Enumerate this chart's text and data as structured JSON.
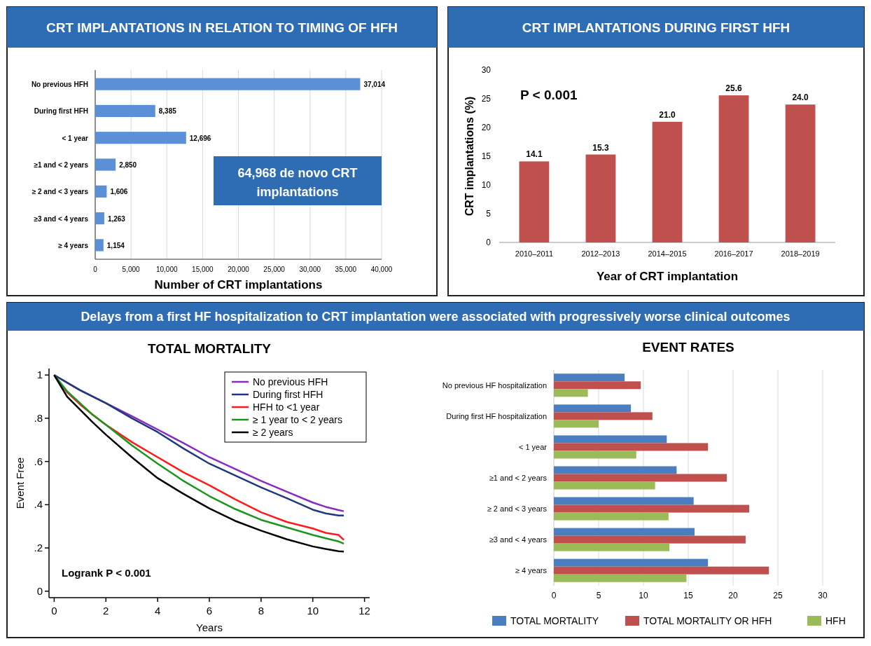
{
  "chart_data": [
    {
      "type": "bar",
      "orientation": "horizontal",
      "title": "CRT IMPLANTATIONS IN RELATION TO TIMING OF HFH",
      "xlabel": "Number of CRT implantations",
      "categories": [
        "No previous HFH",
        "During first HFH",
        "< 1 year",
        "≥1 and < 2 years",
        "≥ 2 and < 3 years",
        "≥3 and < 4 years",
        "≥ 4 years"
      ],
      "values": [
        37014,
        8385,
        12696,
        2850,
        1606,
        1263,
        1154
      ],
      "value_labels": [
        "37,014",
        "8,385",
        "12,696",
        "2,850",
        "1,606",
        "1,263",
        "1,154"
      ],
      "color": "#5b8fd6",
      "xlim": [
        0,
        40000
      ],
      "xticks": [
        0,
        {
          "value": 5000,
          "label": "5,000"
        },
        {
          "value": 10000,
          "label": "10,000"
        },
        {
          "value": 15000,
          "label": "15,000"
        },
        {
          "value": 20000,
          "label": "20,000"
        },
        {
          "value": 25000,
          "label": "25,000"
        },
        {
          "value": 30000,
          "label": "30,000"
        },
        {
          "value": 35000,
          "label": "35,000"
        },
        {
          "value": 40000,
          "label": "40,000"
        }
      ],
      "grid": "x",
      "annotations": [
        "64,968  de novo CRT implantations"
      ]
    },
    {
      "type": "bar",
      "title": "CRT IMPLANTATIONS DURING FIRST HFH",
      "xlabel": "Year of CRT implantation",
      "ylabel": "CRT implantations (%)",
      "categories": [
        "2010–2011",
        "2012–2013",
        "2014–2015",
        "2016–2017",
        "2018–2019"
      ],
      "values": [
        14.1,
        15.3,
        21.0,
        25.6,
        24.0
      ],
      "value_labels": [
        "14.1",
        "15.3",
        "21.0",
        "25.6",
        "24.0"
      ],
      "color": "#c0504d",
      "ylim": [
        0,
        30
      ],
      "yticks": [
        0,
        5,
        10,
        15,
        20,
        25,
        30
      ],
      "annotations": [
        "P < 0.001"
      ]
    },
    {
      "type": "line",
      "title": "TOTAL MORTALITY",
      "xlabel": "Years",
      "ylabel": "Event Free",
      "xlim": [
        -0.2,
        12.2
      ],
      "xticks": [
        0,
        2,
        4,
        6,
        8,
        10,
        12
      ],
      "ylim": [
        -0.03,
        1.03
      ],
      "yticks": [
        {
          "value": 0,
          "label": "0"
        },
        {
          "value": 0.2,
          "label": ".2"
        },
        {
          "value": 0.4,
          "label": ".4"
        },
        {
          "value": 0.6,
          "label": ".6"
        },
        {
          "value": 0.8,
          "label": ".8"
        },
        {
          "value": 1,
          "label": "1"
        }
      ],
      "legend": "top right",
      "annotations": [
        "Delays from a first HF hospitalization to CRT implantation were associated with progressively worse clinical outcomes",
        "Logrank P < 0.001"
      ],
      "x": [
        0,
        0.5,
        1,
        1.5,
        2,
        3,
        4,
        5,
        6,
        7,
        8,
        9,
        10,
        10.5,
        11,
        11.2
      ],
      "series": [
        {
          "name": "No previous HFH",
          "color": "#8a2bc0",
          "values": [
            1,
            0.965,
            0.93,
            0.9,
            0.87,
            0.81,
            0.748,
            0.685,
            0.62,
            0.565,
            0.51,
            0.46,
            0.41,
            0.39,
            0.375,
            0.37
          ]
        },
        {
          "name": "During first HFH",
          "color": "#1f3a7a",
          "values": [
            1,
            0.965,
            0.93,
            0.9,
            0.87,
            0.8,
            0.736,
            0.66,
            0.59,
            0.535,
            0.48,
            0.43,
            0.377,
            0.36,
            0.35,
            0.35
          ]
        },
        {
          "name": "HFH to <1 year",
          "color": "#ff1a1a",
          "values": [
            1,
            0.92,
            0.864,
            0.815,
            0.77,
            0.69,
            0.62,
            0.55,
            0.49,
            0.425,
            0.365,
            0.32,
            0.29,
            0.27,
            0.26,
            0.237
          ]
        },
        {
          "name": "≥ 1 year to < 2 years",
          "color": "#1a961e",
          "values": [
            1,
            0.925,
            0.87,
            0.815,
            0.77,
            0.675,
            0.59,
            0.51,
            0.44,
            0.38,
            0.33,
            0.295,
            0.26,
            0.245,
            0.23,
            0.22
          ]
        },
        {
          "name": "≥ 2 years",
          "color": "#000000",
          "values": [
            1,
            0.9,
            0.84,
            0.78,
            0.724,
            0.62,
            0.523,
            0.45,
            0.383,
            0.325,
            0.28,
            0.24,
            0.207,
            0.195,
            0.185,
            0.183
          ]
        }
      ]
    },
    {
      "type": "bar",
      "orientation": "horizontal",
      "title": "EVENT RATES",
      "categories": [
        "No previous HF hospitalization",
        "During first HF hospitalization",
        "< 1 year",
        "≥1 and < 2 years",
        "≥ 2 and < 3 years",
        "≥3 and < 4 years",
        "≥ 4 years"
      ],
      "xlim": [
        0,
        30
      ],
      "xticks": [
        0,
        5,
        10,
        15,
        20,
        25,
        30
      ],
      "grid": "x",
      "legend": "bottom",
      "series": [
        {
          "name": "TOTAL MORTALITY",
          "color": "#4a7ebf",
          "values": [
            7.9,
            8.6,
            12.6,
            13.7,
            15.6,
            15.7,
            17.2
          ]
        },
        {
          "name": "TOTAL MORTALITY OR HFH",
          "color": "#c0504d",
          "values": [
            9.7,
            11.0,
            17.2,
            19.3,
            21.8,
            21.4,
            24.0
          ]
        },
        {
          "name": "HFH",
          "color": "#9bbb59",
          "values": [
            3.8,
            5.0,
            9.2,
            11.3,
            12.8,
            12.9,
            14.8
          ]
        }
      ]
    }
  ]
}
